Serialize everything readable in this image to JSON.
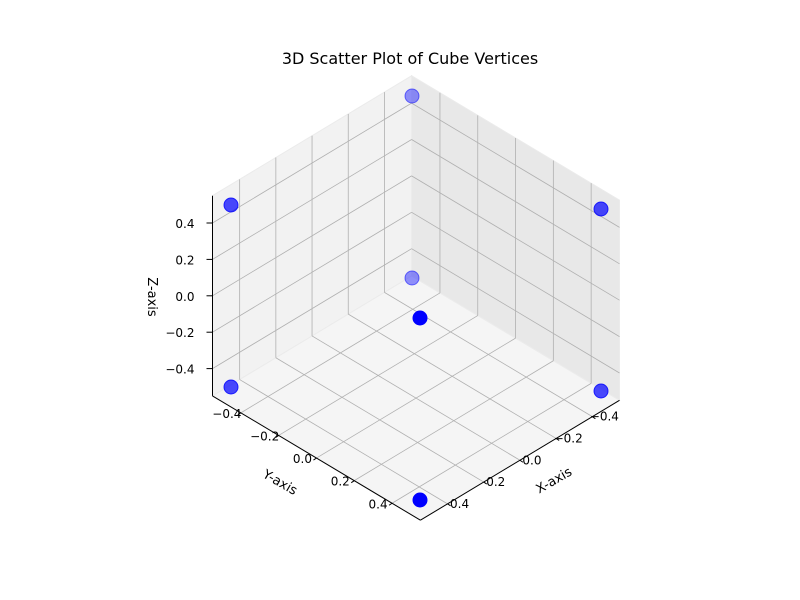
{
  "chart_data": {
    "type": "scatter",
    "title": "3D Scatter Plot of Cube Vertices",
    "xlabel": "X-axis",
    "ylabel": "Y-axis",
    "zlabel": "Z-axis",
    "xlim": [
      -0.55,
      0.55
    ],
    "ylim": [
      -0.55,
      0.55
    ],
    "zlim": [
      -0.55,
      0.55
    ],
    "xticks": [
      "−0.4",
      "−0.2",
      "0.0",
      "0.2",
      "0.4"
    ],
    "yticks": [
      "−0.4",
      "−0.2",
      "0.0",
      "0.2",
      "0.4"
    ],
    "zticks": [
      "−0.4",
      "−0.2",
      "0.0",
      "0.2",
      "0.4"
    ],
    "tick_values": [
      -0.4,
      -0.2,
      0.0,
      0.2,
      0.4
    ],
    "grid": true,
    "marker_color": "#0000ff",
    "points": [
      {
        "x": -0.5,
        "y": -0.5,
        "z": -0.5
      },
      {
        "x": 0.5,
        "y": -0.5,
        "z": -0.5
      },
      {
        "x": -0.5,
        "y": 0.5,
        "z": -0.5
      },
      {
        "x": 0.5,
        "y": 0.5,
        "z": -0.5
      },
      {
        "x": -0.5,
        "y": -0.5,
        "z": 0.5
      },
      {
        "x": 0.5,
        "y": -0.5,
        "z": 0.5
      },
      {
        "x": -0.5,
        "y": 0.5,
        "z": 0.5
      },
      {
        "x": 0.5,
        "y": 0.5,
        "z": 0.5
      }
    ]
  }
}
